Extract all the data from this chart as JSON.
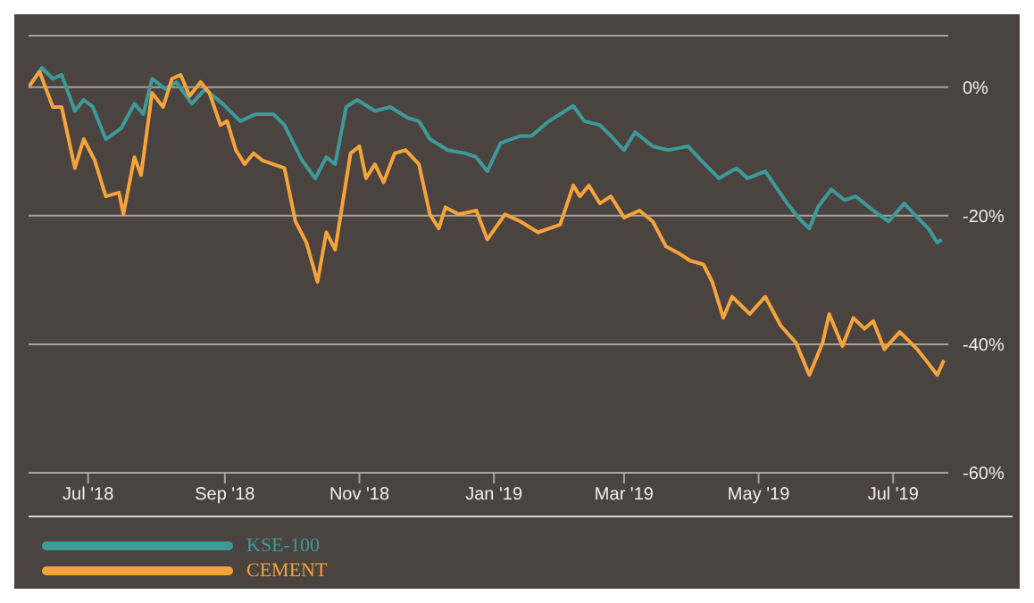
{
  "chart_data": {
    "type": "line",
    "xlim": [
      "2018-06-04",
      "2019-07-26"
    ],
    "xticks": [
      {
        "value": "2018-07-01",
        "label": "Jul '18"
      },
      {
        "value": "2018-09-01",
        "label": "Sep '18"
      },
      {
        "value": "2018-11-01",
        "label": "Nov '18"
      },
      {
        "value": "2019-01-01",
        "label": "Jan '19"
      },
      {
        "value": "2019-03-01",
        "label": "Mar '19"
      },
      {
        "value": "2019-05-01",
        "label": "May '19"
      },
      {
        "value": "2019-07-01",
        "label": "Jul '19"
      }
    ],
    "ylim": [
      -60,
      8
    ],
    "yticks": [
      {
        "value": 0,
        "label": "0%"
      },
      {
        "value": -20,
        "label": "-20%"
      },
      {
        "value": -40,
        "label": "-40%"
      },
      {
        "value": -60,
        "label": "-60%"
      }
    ],
    "grid": "y",
    "legend": "bottom left",
    "marker": "none",
    "line_style": "solid",
    "series": [
      {
        "name": "KSE-100",
        "color": "#3e9a98",
        "x": [
          "2018-06-04",
          "2018-06-10",
          "2018-06-15",
          "2018-06-19",
          "2018-06-25",
          "2018-06-29",
          "2018-07-03",
          "2018-07-09",
          "2018-07-16",
          "2018-07-22",
          "2018-07-26",
          "2018-07-30",
          "2018-08-05",
          "2018-08-10",
          "2018-08-17",
          "2018-08-23",
          "2018-08-31",
          "2018-09-08",
          "2018-09-15",
          "2018-09-23",
          "2018-09-28",
          "2018-10-06",
          "2018-10-12",
          "2018-10-17",
          "2018-10-21",
          "2018-10-26",
          "2018-10-31",
          "2018-11-08",
          "2018-11-15",
          "2018-11-23",
          "2018-11-28",
          "2018-12-03",
          "2018-12-11",
          "2018-12-19",
          "2018-12-24",
          "2018-12-29",
          "2019-01-04",
          "2019-01-13",
          "2019-01-18",
          "2019-01-26",
          "2019-02-06",
          "2019-02-11",
          "2019-02-18",
          "2019-02-23",
          "2019-03-01",
          "2019-03-06",
          "2019-03-14",
          "2019-03-21",
          "2019-03-30",
          "2019-04-05",
          "2019-04-13",
          "2019-04-21",
          "2019-04-26",
          "2019-05-04",
          "2019-05-14",
          "2019-05-19",
          "2019-05-24",
          "2019-05-28",
          "2019-06-03",
          "2019-06-09",
          "2019-06-14",
          "2019-06-22",
          "2019-06-29",
          "2019-07-06",
          "2019-07-12",
          "2019-07-17",
          "2019-07-21",
          "2019-07-23"
        ],
        "values": [
          0,
          3,
          1.3,
          1.9,
          -3.7,
          -2,
          -3,
          -8.1,
          -6.4,
          -2.6,
          -4.2,
          1.3,
          -0.3,
          0.8,
          -2.6,
          -0.3,
          -2.6,
          -5.3,
          -4.2,
          -4.2,
          -5.9,
          -11.4,
          -14.2,
          -10.9,
          -12,
          -3.1,
          -2,
          -3.7,
          -3.1,
          -4.8,
          -5.3,
          -8.1,
          -9.8,
          -10.3,
          -10.9,
          -13.1,
          -8.7,
          -7.6,
          -7.6,
          -5.3,
          -2.9,
          -5.3,
          -5.9,
          -7.6,
          -9.8,
          -7,
          -9.2,
          -9.8,
          -9.2,
          -11.4,
          -14.2,
          -12.6,
          -14.2,
          -13.1,
          -18.1,
          -20.3,
          -22,
          -18.6,
          -15.9,
          -17.6,
          -17,
          -19.2,
          -20.9,
          -18.1,
          -20.3,
          -22,
          -24.2,
          -23.7
        ]
      },
      {
        "name": "CEMENT",
        "color": "#f4a43a",
        "x": [
          "2018-06-04",
          "2018-06-09",
          "2018-06-15",
          "2018-06-19",
          "2018-06-25",
          "2018-06-29",
          "2018-07-04",
          "2018-07-09",
          "2018-07-15",
          "2018-07-17",
          "2018-07-22",
          "2018-07-25",
          "2018-07-30",
          "2018-08-04",
          "2018-08-08",
          "2018-08-12",
          "2018-08-16",
          "2018-08-21",
          "2018-08-25",
          "2018-08-30",
          "2018-09-02",
          "2018-09-06",
          "2018-09-10",
          "2018-09-14",
          "2018-09-18",
          "2018-09-23",
          "2018-09-28",
          "2018-10-03",
          "2018-10-08",
          "2018-10-13",
          "2018-10-17",
          "2018-10-21",
          "2018-10-28",
          "2018-11-01",
          "2018-11-04",
          "2018-11-08",
          "2018-11-12",
          "2018-11-17",
          "2018-11-22",
          "2018-11-28",
          "2018-12-03",
          "2018-12-07",
          "2018-12-10",
          "2018-12-16",
          "2018-12-24",
          "2018-12-29",
          "2019-01-06",
          "2019-01-13",
          "2019-01-21",
          "2019-01-31",
          "2019-02-06",
          "2019-02-09",
          "2019-02-13",
          "2019-02-18",
          "2019-02-23",
          "2019-03-01",
          "2019-03-08",
          "2019-03-14",
          "2019-03-20",
          "2019-03-26",
          "2019-03-31",
          "2019-04-06",
          "2019-04-10",
          "2019-04-15",
          "2019-04-19",
          "2019-04-27",
          "2019-05-04",
          "2019-05-11",
          "2019-05-18",
          "2019-05-24",
          "2019-05-30",
          "2019-06-02",
          "2019-06-08",
          "2019-06-13",
          "2019-06-18",
          "2019-06-22",
          "2019-06-27",
          "2019-07-04",
          "2019-07-12",
          "2019-07-17",
          "2019-07-21",
          "2019-07-24"
        ],
        "values": [
          0,
          2.4,
          -3.1,
          -3.1,
          -12.6,
          -8.1,
          -11.4,
          -17,
          -16.4,
          -19.8,
          -10.9,
          -13.7,
          -0.9,
          -3.1,
          1.3,
          1.9,
          -1.4,
          0.8,
          -0.9,
          -5.9,
          -5.3,
          -9.8,
          -12,
          -10.3,
          -11.4,
          -12,
          -12.6,
          -20.9,
          -24.2,
          -30.3,
          -22.6,
          -25.3,
          -10.3,
          -9.2,
          -14.2,
          -12,
          -14.8,
          -10.3,
          -9.8,
          -12,
          -19.8,
          -22,
          -18.7,
          -19.8,
          -19.2,
          -23.7,
          -19.8,
          -20.9,
          -22.6,
          -21.4,
          -15.3,
          -17,
          -15.3,
          -18.1,
          -17,
          -20.3,
          -19.2,
          -20.9,
          -24.8,
          -25.9,
          -27,
          -27.6,
          -30.3,
          -35.9,
          -32.6,
          -35.3,
          -32.6,
          -37.1,
          -39.8,
          -44.8,
          -39.8,
          -35.3,
          -40.3,
          -35.9,
          -37.6,
          -36.4,
          -40.8,
          -38.1,
          -40.8,
          -43,
          -44.8,
          -42.5
        ]
      }
    ]
  }
}
